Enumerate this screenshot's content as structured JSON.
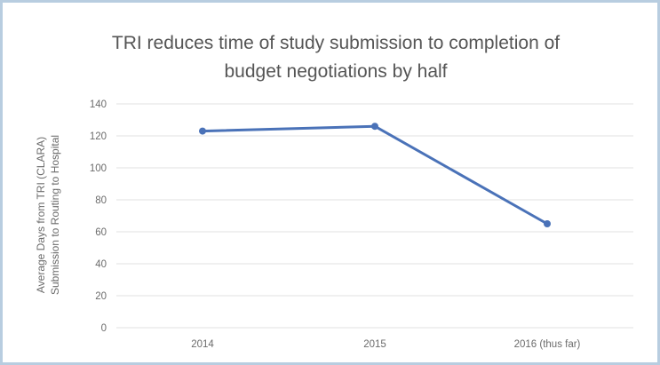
{
  "chart_data": {
    "type": "line",
    "title_line1": "TRI reduces time of study submission to completion of",
    "title_line2": "budget negotiations by half",
    "categories": [
      "2014",
      "2015",
      "2016 (thus far)"
    ],
    "series": [
      {
        "values": [
          123,
          126,
          65
        ]
      }
    ],
    "ylabel_line1": "Average Days from TRI (CLARA)",
    "ylabel_line2": "Submission to Routing  to Hospital",
    "ylim": [
      0,
      140
    ],
    "yticks": [
      "0",
      "20",
      "40",
      "60",
      "80",
      "100",
      "120",
      "140"
    ],
    "grid": true,
    "line_color": "#4a72b8",
    "grid_color": "#e2e2e2"
  }
}
